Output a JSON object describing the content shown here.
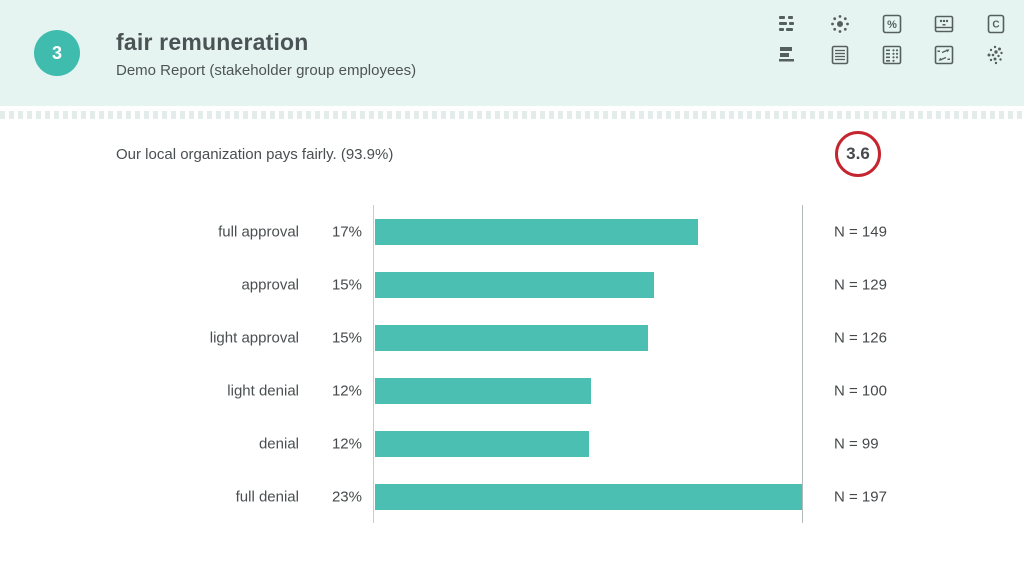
{
  "header": {
    "question_number": "3",
    "title": "fair remuneration",
    "subtitle": "Demo Report (stakeholder group employees)"
  },
  "toolbar": {
    "icons": [
      "list-dashes-icon",
      "radial-dots-icon",
      "percent-box-icon",
      "slider-box-icon",
      "letter-c-box-icon",
      "horizontal-bars-icon",
      "document-lines-icon",
      "matrix-box-icon",
      "compare-arrows-box-icon",
      "scatter-dots-icon"
    ],
    "percent_glyph": "%",
    "letter_c_glyph": "C"
  },
  "question": {
    "text": "Our local organization pays fairly. (93.9%)",
    "score": "3.6"
  },
  "chart_data": {
    "type": "bar",
    "orientation": "horizontal",
    "title": "",
    "categories": [
      "full approval",
      "approval",
      "light approval",
      "light denial",
      "denial",
      "full denial"
    ],
    "values": [
      17,
      15,
      15,
      12,
      12,
      23
    ],
    "value_suffix": "%",
    "n_prefix": "N = ",
    "n_values": [
      149,
      129,
      126,
      100,
      99,
      197
    ],
    "axis_max": 23,
    "bar_fractions": [
      0.757,
      0.654,
      0.64,
      0.506,
      0.502,
      1.0
    ],
    "bar_color": "#4bbfb2",
    "grid": "off",
    "legend": "none"
  },
  "colors": {
    "header_bg": "#e6f4f1",
    "accent_teal": "#3fbcae",
    "bar_teal": "#4bbfb2",
    "score_red": "#c4252e",
    "icon_gray": "#55605e",
    "axis_gray": "#c7cccc"
  }
}
